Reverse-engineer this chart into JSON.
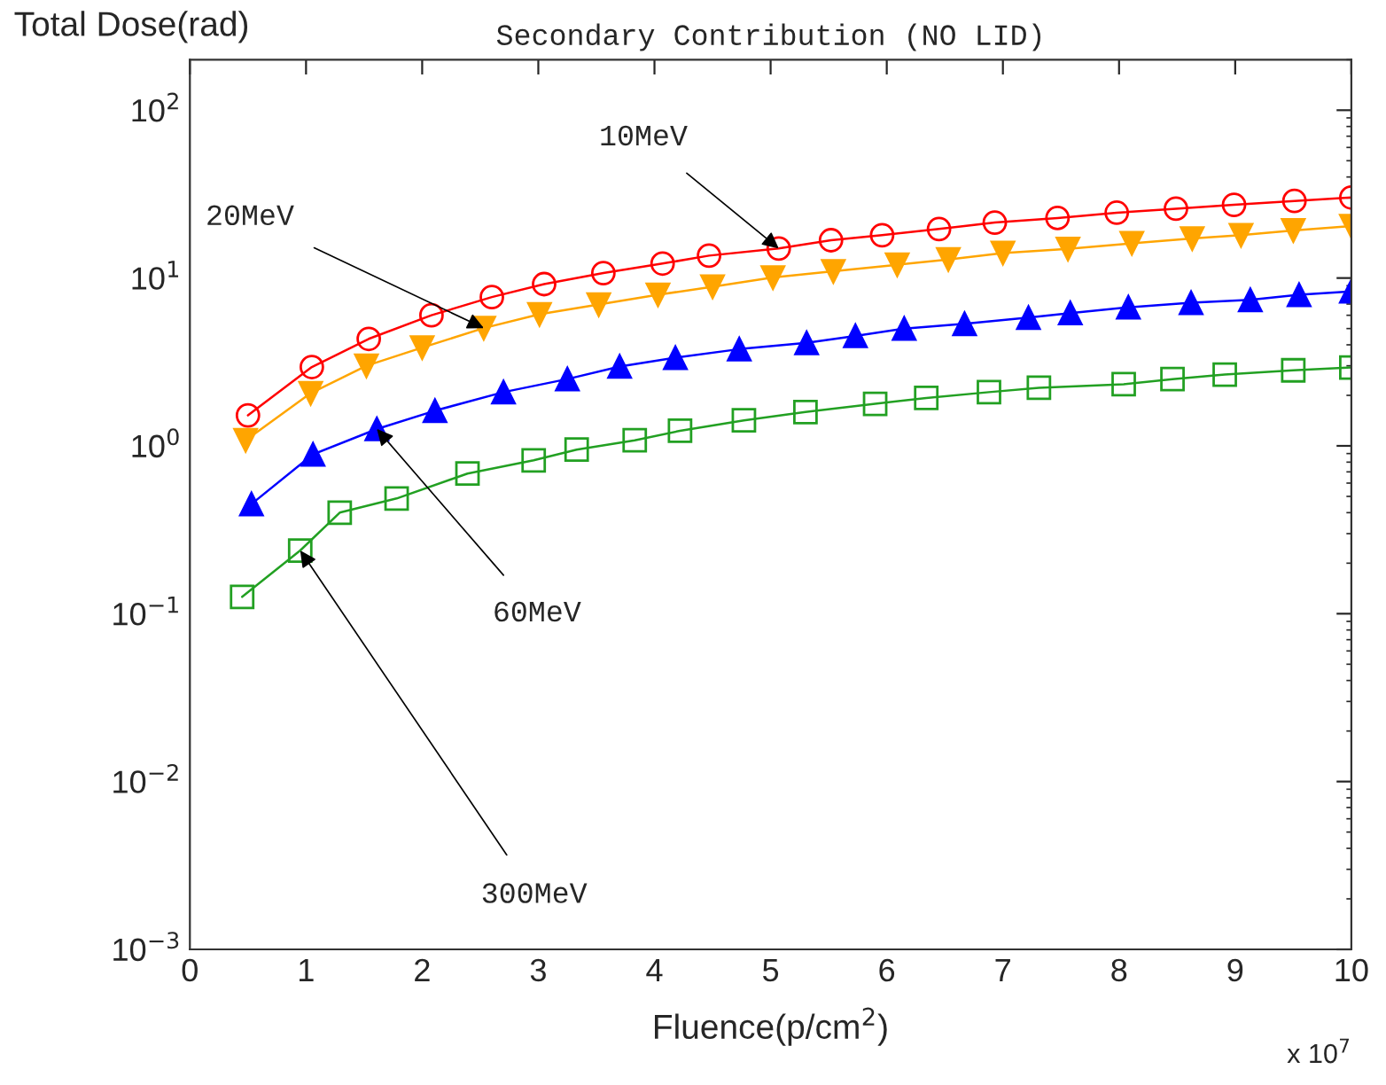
{
  "chart_data": {
    "type": "line",
    "title": "Secondary Contribution (NO LID)",
    "xlabel": "Fluence(p/cm$^{2}$)",
    "ylabel": "Total Dose(rad)",
    "log": "y",
    "grid": false,
    "legend": false,
    "line_style": "solid",
    "xlim": [
      0,
      10
    ],
    "xticks": [
      0,
      1,
      2,
      3,
      4,
      5,
      6,
      7,
      8,
      9,
      10
    ],
    "ylim": [
      0.001,
      200
    ],
    "yticks": [
      {
        "value": 0.001,
        "label": "10$^{−3}$"
      },
      {
        "value": 0.01,
        "label": "10$^{−2}$"
      },
      {
        "value": 0.1,
        "label": "10$^{−1}$"
      },
      {
        "value": 1,
        "label": "10$^{0}$"
      },
      {
        "value": 10,
        "label": "10$^{1}$"
      },
      {
        "value": 100,
        "label": "10$^{2}$"
      }
    ],
    "series": [
      {
        "color": "#ff0000",
        "marker": "circle",
        "x": [
          0.5,
          1.05,
          1.54,
          2.08,
          2.6,
          3.05,
          3.56,
          4.07,
          4.47,
          5.07,
          5.52,
          5.96,
          6.45,
          6.93,
          7.47,
          7.98,
          8.49,
          8.99,
          9.51,
          10.0
        ],
        "values": [
          1.52,
          2.95,
          4.34,
          6.0,
          7.7,
          9.2,
          10.7,
          12.2,
          13.6,
          15.0,
          16.8,
          18.0,
          19.6,
          21.4,
          22.8,
          24.5,
          25.9,
          27.3,
          28.8,
          30.2
        ]
      },
      {
        "color": "#ffa500",
        "marker": "triangle_down",
        "x": [
          0.48,
          1.04,
          1.52,
          2.0,
          2.53,
          3.01,
          3.52,
          4.03,
          4.5,
          5.02,
          5.54,
          6.09,
          6.53,
          7.0,
          7.56,
          8.11,
          8.63,
          9.05,
          9.5,
          10.0
        ],
        "values": [
          1.08,
          2.06,
          3.0,
          3.85,
          5.03,
          6.08,
          6.95,
          7.95,
          8.87,
          10.07,
          10.97,
          12.0,
          12.9,
          14.1,
          14.9,
          16.1,
          17.2,
          18.0,
          19.2,
          20.4
        ]
      },
      {
        "color": "#0000ff",
        "marker": "triangle",
        "x": [
          0.53,
          1.06,
          1.61,
          2.11,
          2.7,
          3.25,
          3.7,
          4.18,
          4.73,
          5.31,
          5.73,
          6.15,
          6.67,
          7.22,
          7.58,
          8.08,
          8.62,
          9.13,
          9.55,
          10.0
        ],
        "values": [
          0.45,
          0.89,
          1.26,
          1.62,
          2.09,
          2.5,
          2.97,
          3.35,
          3.77,
          4.11,
          4.52,
          5.0,
          5.34,
          5.81,
          6.18,
          6.69,
          7.12,
          7.41,
          7.95,
          8.33
        ]
      },
      {
        "color": "#22a022",
        "marker": "square",
        "x": [
          0.45,
          0.95,
          1.29,
          1.78,
          2.39,
          2.96,
          3.33,
          3.83,
          4.22,
          4.77,
          5.3,
          5.9,
          6.34,
          6.88,
          7.31,
          8.04,
          8.46,
          8.91,
          9.5,
          10.0
        ],
        "values": [
          0.126,
          0.238,
          0.4,
          0.486,
          0.684,
          0.82,
          0.95,
          1.08,
          1.23,
          1.42,
          1.59,
          1.78,
          1.93,
          2.09,
          2.22,
          2.33,
          2.5,
          2.66,
          2.82,
          2.93
        ]
      }
    ],
    "annotations": [
      {
        "text": "10MeV",
        "x": 5.07,
        "y": 15.0
      },
      {
        "text": "20MeV",
        "x": 2.53,
        "y": 5.03
      },
      {
        "text": "60MeV",
        "x": 1.61,
        "y": 1.26
      },
      {
        "text": "300MeV",
        "x": 0.95,
        "y": 0.238
      },
      "x 10$^{7}$"
    ]
  }
}
